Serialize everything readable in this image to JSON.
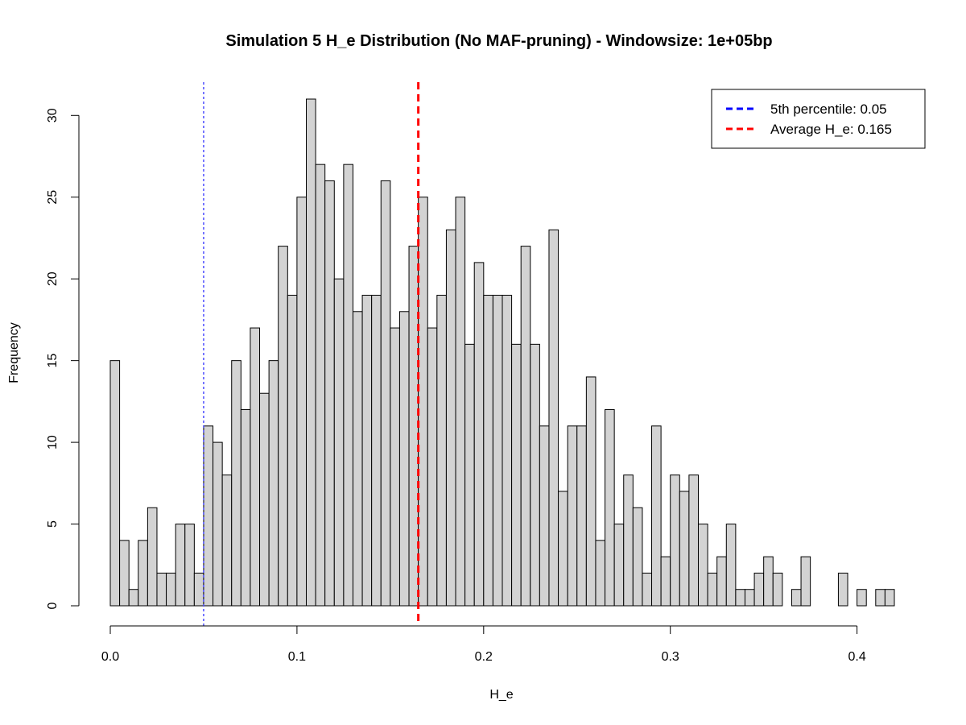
{
  "chart_data": {
    "type": "bar",
    "title": "Simulation 5 H_e Distribution (No MAF-pruning) - Windowsize: 1e+05bp",
    "xlabel": "H_e",
    "ylabel": "Frequency",
    "xlim": [
      0,
      0.42
    ],
    "ylim": [
      0,
      31
    ],
    "bin_width": 0.005,
    "x_ticks": [
      "0.0",
      "0.1",
      "0.2",
      "0.3",
      "0.4"
    ],
    "y_ticks": [
      "0",
      "5",
      "10",
      "15",
      "20",
      "25",
      "30"
    ],
    "values": [
      15,
      4,
      1,
      4,
      6,
      2,
      2,
      5,
      5,
      2,
      11,
      10,
      8,
      15,
      12,
      17,
      13,
      15,
      22,
      19,
      25,
      31,
      27,
      26,
      20,
      27,
      18,
      19,
      19,
      26,
      17,
      18,
      22,
      25,
      17,
      19,
      23,
      25,
      16,
      21,
      19,
      19,
      19,
      16,
      22,
      16,
      11,
      23,
      7,
      11,
      11,
      14,
      4,
      12,
      5,
      8,
      6,
      2,
      11,
      3,
      8,
      7,
      8,
      5,
      2,
      3,
      5,
      1,
      1,
      2,
      3,
      2,
      0,
      1,
      3,
      0,
      0,
      0,
      2,
      0,
      1,
      0,
      1,
      1
    ],
    "vlines": [
      {
        "x": 0.05,
        "color": "#4d4dff",
        "style": "dotted"
      },
      {
        "x": 0.165,
        "color": "#ff0000",
        "style": "dashed"
      }
    ],
    "legend": {
      "position": "top-right",
      "entries": [
        {
          "label": "5th percentile:  0.05",
          "color": "#0000ff"
        },
        {
          "label": "Average H_e:  0.165",
          "color": "#ff0000"
        }
      ]
    },
    "bar_fill": "#d3d3d3",
    "bar_stroke": "#000000",
    "grid": false
  }
}
